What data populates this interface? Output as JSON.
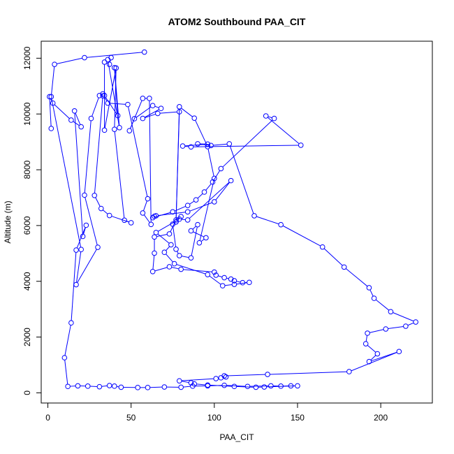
{
  "chart_data": {
    "type": "line",
    "title": "ATOM2 Southbound PAA_CIT",
    "xlabel": "PAA_CIT",
    "ylabel": "Altitude (m)",
    "xlim": [
      -4,
      231
    ],
    "ylim": [
      -365,
      12610
    ],
    "xticks": [
      0,
      50,
      100,
      150,
      200
    ],
    "yticks": [
      0,
      2000,
      4000,
      6000,
      8000,
      10000,
      12000
    ],
    "grid": false,
    "legend": "none",
    "colors": {
      "series": "#0000ff"
    },
    "marker": "open-circle",
    "series": [
      {
        "x": [
          58,
          22,
          4,
          2,
          20,
          17,
          30,
          22,
          26,
          31,
          34,
          42,
          40,
          43,
          36,
          38,
          37,
          34,
          34,
          41,
          40,
          46,
          50,
          37,
          32,
          28,
          33,
          33,
          36,
          48,
          60,
          57,
          62,
          61,
          57,
          49,
          52,
          63,
          68,
          57,
          66,
          79,
          77,
          75,
          77,
          79,
          86,
          90,
          86,
          95,
          91,
          100,
          96,
          88,
          79,
          77,
          80,
          77,
          73,
          64,
          64,
          63,
          73,
          80,
          100,
          101,
          106,
          110,
          112,
          117,
          121,
          112,
          105,
          96,
          76,
          70,
          74,
          65,
          79,
          84,
          110,
          100,
          84,
          65,
          64,
          63,
          75,
          84,
          89,
          94,
          99,
          104,
          136,
          131,
          152,
          86,
          81,
          96,
          90,
          98,
          109,
          124,
          140,
          165,
          178,
          193,
          196,
          206,
          221,
          215,
          203,
          192,
          191,
          198,
          193,
          211,
          181,
          132,
          106,
          107,
          104,
          101,
          79,
          86,
          88,
          96,
          112,
          125,
          130,
          150,
          146,
          140,
          134,
          120,
          106,
          96,
          87,
          80,
          70,
          60,
          54,
          44,
          40,
          37,
          31,
          24,
          18,
          12,
          10,
          14,
          17,
          23,
          21,
          16,
          20,
          14,
          3,
          1,
          2
        ],
        "y": [
          12220,
          12020,
          11780,
          10620,
          5140,
          3880,
          5220,
          7090,
          9840,
          10660,
          10660,
          9940,
          11660,
          9510,
          11950,
          12020,
          11780,
          11860,
          9420,
          11650,
          9450,
          6190,
          6100,
          6360,
          6610,
          7080,
          10650,
          10720,
          10390,
          10340,
          6960,
          6450,
          6040,
          10560,
          10560,
          9400,
          9830,
          10300,
          10200,
          9840,
          10020,
          10080,
          6130,
          6050,
          5150,
          4920,
          4840,
          6030,
          5810,
          5560,
          5380,
          7690,
          8830,
          9850,
          10260,
          6130,
          6320,
          6200,
          5700,
          5590,
          5010,
          4350,
          4520,
          4430,
          4330,
          4220,
          4130,
          4080,
          4020,
          3950,
          3960,
          3890,
          3840,
          4240,
          4630,
          5040,
          5310,
          5750,
          6230,
          6200,
          7610,
          6850,
          6490,
          6350,
          6330,
          6280,
          6490,
          6720,
          6920,
          7200,
          7560,
          8040,
          9840,
          9930,
          8880,
          8820,
          8850,
          8920,
          8930,
          8870,
          8930,
          6350,
          6030,
          5230,
          4510,
          3770,
          3390,
          2910,
          2540,
          2390,
          2290,
          2140,
          1760,
          1400,
          1120,
          1480,
          760,
          660,
          610,
          570,
          540,
          510,
          430,
          360,
          320,
          280,
          230,
          200,
          210,
          250,
          250,
          240,
          250,
          230,
          270,
          250,
          240,
          200,
          210,
          190,
          190,
          200,
          240,
          260,
          220,
          240,
          250,
          230,
          1260,
          2510,
          5120,
          6010,
          5610,
          10110,
          9540,
          9780,
          10390,
          10620,
          9480
        ]
      }
    ]
  }
}
